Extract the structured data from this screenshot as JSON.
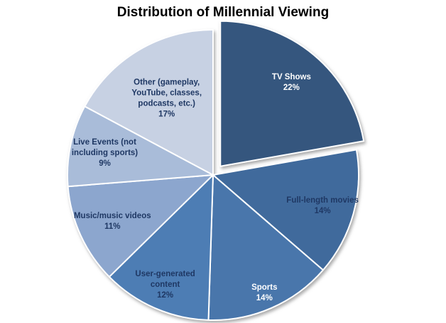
{
  "page": {
    "background": "#ffffff"
  },
  "chart_data": {
    "type": "pie",
    "title": "Distribution of Millennial Viewing",
    "unit": "%",
    "legend_position": "none",
    "data_labels": "category name and percentage shown on slices",
    "start_angle_deg": 0,
    "direction": "clockwise",
    "categories": [
      "TV Shows",
      "Full-length movies",
      "Sports",
      "User-generated content",
      "Music/music videos",
      "Live Events (not including sports)",
      "Other (gameplay, YouTube, classes, podcasts, etc.)"
    ],
    "values": [
      22,
      14,
      14,
      12,
      11,
      9,
      17
    ],
    "slices": [
      {
        "label": "TV Shows",
        "value": 22,
        "percent_text": "22%",
        "color": "#34567E",
        "text_color": "#FFFFFF",
        "exploded": true,
        "label_lines": [
          "TV Shows",
          "22%"
        ]
      },
      {
        "label": "Full-length movies",
        "value": 14,
        "percent_text": "14%",
        "color": "#3F6A9C",
        "text_color": "#1F3864",
        "exploded": false,
        "label_lines": [
          "Full-length movies",
          "14%"
        ]
      },
      {
        "label": "Sports",
        "value": 14,
        "percent_text": "14%",
        "color": "#4876AB",
        "text_color": "#FFFFFF",
        "exploded": false,
        "label_lines": [
          "Sports",
          "14%"
        ]
      },
      {
        "label": "User-generated content",
        "value": 12,
        "percent_text": "12%",
        "color": "#4E7DB4",
        "text_color": "#1F3864",
        "exploded": false,
        "label_lines": [
          "User-generated",
          "content",
          "12%"
        ]
      },
      {
        "label": "Music/music videos",
        "value": 11,
        "percent_text": "11%",
        "color": "#8CA6CE",
        "text_color": "#1F3864",
        "exploded": false,
        "label_lines": [
          "Music/music videos",
          "11%"
        ]
      },
      {
        "label": "Live Events (not including sports)",
        "value": 9,
        "percent_text": "9%",
        "color": "#A9BCD9",
        "text_color": "#1F3864",
        "exploded": false,
        "label_lines": [
          "Live Events (not",
          "including sports)",
          "9%"
        ]
      },
      {
        "label": "Other (gameplay, YouTube, classes, podcasts, etc.)",
        "value": 17,
        "percent_text": "17%",
        "color": "#C7D1E3",
        "text_color": "#1F3864",
        "exploded": false,
        "label_lines": [
          "Other  (gameplay,",
          "YouTube, classes,",
          "podcasts, etc.)",
          "17%"
        ]
      }
    ]
  }
}
